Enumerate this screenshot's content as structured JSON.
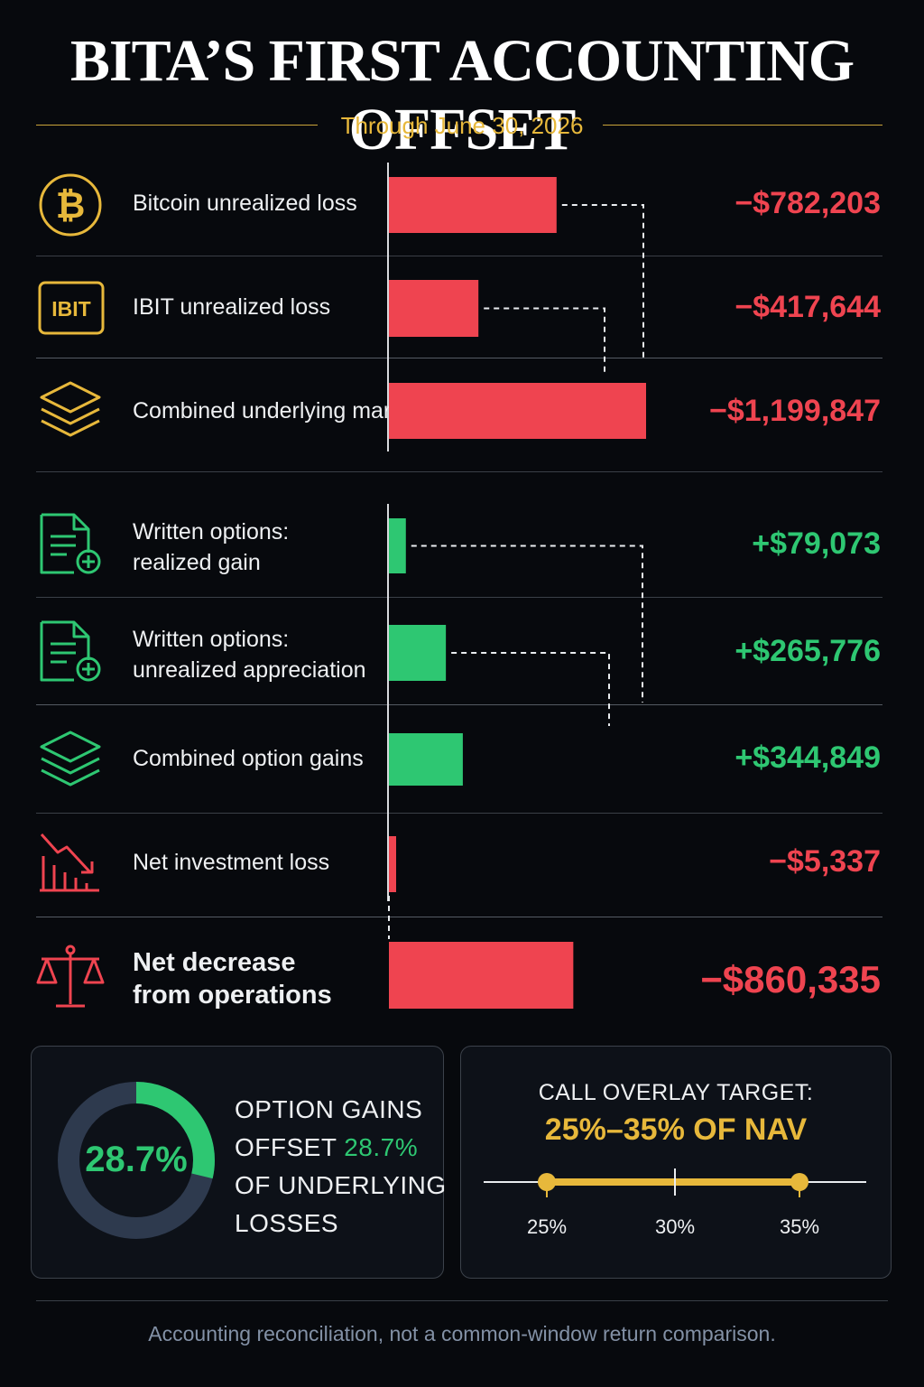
{
  "header": {
    "title": "BITA’S FIRST ACCOUNTING OFFSET",
    "subtitle": "Through June 30, 2026"
  },
  "chart_data": {
    "type": "bar",
    "orientation": "horizontal",
    "title": "BITA’S FIRST ACCOUNTING OFFSET",
    "subtitle": "Through June 30, 2026",
    "categories": [
      "Bitcoin unrealized loss",
      "IBIT unrealized loss",
      "Combined underlying marks",
      "Written options:\nrealized gain",
      "Written options:\nunrealized appreciation",
      "Combined option gains",
      "Net investment loss",
      "Net decrease\nfrom operations"
    ],
    "values": [
      -782203,
      -417644,
      -1199847,
      79073,
      265776,
      344849,
      -5337,
      -860335
    ],
    "value_labels": [
      "−$782,203",
      "−$417,644",
      "−$1,199,847",
      "+$79,073",
      "+$265,776",
      "+$344,849",
      "−$5,337",
      "−$860,335"
    ],
    "icons": [
      "bitcoin-icon",
      "ibit-badge-icon",
      "layers-icon",
      "document-plus-icon",
      "document-plus-icon",
      "layers-icon",
      "chart-down-icon",
      "scales-icon"
    ],
    "colors": {
      "negative": "#ef4450",
      "positive": "#2ec772",
      "accent": "#e7b83b"
    }
  },
  "offset_card": {
    "percent": 28.7,
    "center_label": "28.7%",
    "line1": "OPTION GAINS",
    "line2_prefix": "OFFSET ",
    "line2_highlight": "28.7%",
    "line3": "OF UNDERLYING",
    "line4": "LOSSES"
  },
  "target_card": {
    "label": "CALL OVERLAY TARGET:",
    "value": "25%–35% OF NAV",
    "range": [
      25,
      35
    ],
    "ticks": [
      "25%",
      "30%",
      "35%"
    ]
  },
  "footer": {
    "note": "Accounting reconciliation, not a common-window return comparison."
  }
}
